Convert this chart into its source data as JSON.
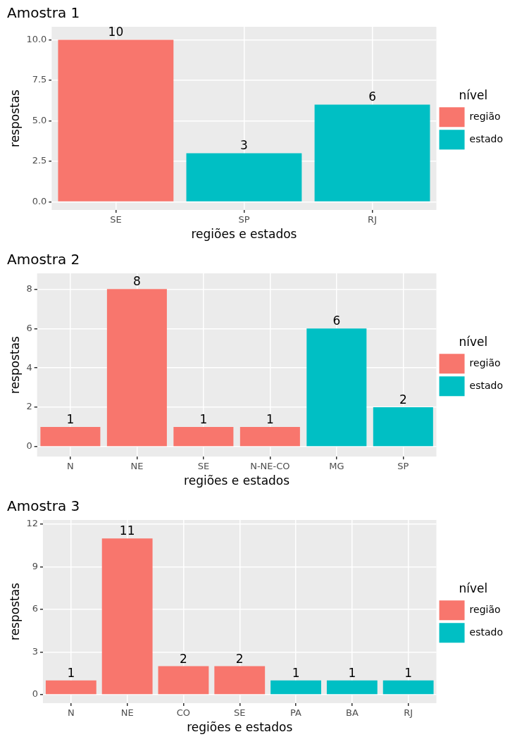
{
  "chart_data": [
    {
      "type": "bar",
      "title": "Amostra 1",
      "xlabel": "regiões e estados",
      "ylabel": "respostas",
      "legend_title": "nível",
      "categories": [
        "SE",
        "SP",
        "RJ"
      ],
      "series": [
        {
          "name": "região",
          "color": "#f8766d",
          "values": [
            10,
            null,
            null
          ]
        },
        {
          "name": "estado",
          "color": "#00bfc4",
          "values": [
            null,
            3,
            6
          ]
        }
      ],
      "ylim": [
        -0.5,
        10.8
      ],
      "yticks": [
        {
          "value": 0,
          "label": "0.0"
        },
        {
          "value": 2.5,
          "label": "2.5"
        },
        {
          "value": 5,
          "label": "5.0"
        },
        {
          "value": 7.5,
          "label": "7.5"
        },
        {
          "value": 10,
          "label": "10.0"
        }
      ],
      "grid": true,
      "legend": "right",
      "data_labels": true
    },
    {
      "type": "bar",
      "title": "Amostra 2",
      "xlabel": "regiões e estados",
      "ylabel": "respostas",
      "legend_title": "nível",
      "categories": [
        "N",
        "NE",
        "SE",
        "N-NE-CO",
        "MG",
        "SP"
      ],
      "series": [
        {
          "name": "região",
          "color": "#f8766d",
          "values": [
            1,
            8,
            1,
            1,
            null,
            null
          ]
        },
        {
          "name": "estado",
          "color": "#00bfc4",
          "values": [
            null,
            null,
            null,
            null,
            6,
            2
          ]
        }
      ],
      "ylim": [
        -0.5,
        8.8
      ],
      "yticks": [
        0,
        2,
        4,
        6,
        8
      ],
      "grid": true,
      "legend": "right",
      "data_labels": true
    },
    {
      "type": "bar",
      "title": "Amostra 3",
      "xlabel": "regiões e estados",
      "ylabel": "respostas",
      "legend_title": "nível",
      "categories": [
        "N",
        "NE",
        "CO",
        "SE",
        "PA",
        "BA",
        "RJ"
      ],
      "series": [
        {
          "name": "região",
          "color": "#f8766d",
          "values": [
            1,
            11,
            2,
            2,
            null,
            null,
            null
          ]
        },
        {
          "name": "estado",
          "color": "#00bfc4",
          "values": [
            null,
            null,
            null,
            null,
            1,
            1,
            1
          ]
        }
      ],
      "ylim": [
        -0.6,
        12.3
      ],
      "yticks": [
        0,
        3,
        6,
        9,
        12
      ],
      "grid": true,
      "legend": "right",
      "data_labels": true
    }
  ]
}
